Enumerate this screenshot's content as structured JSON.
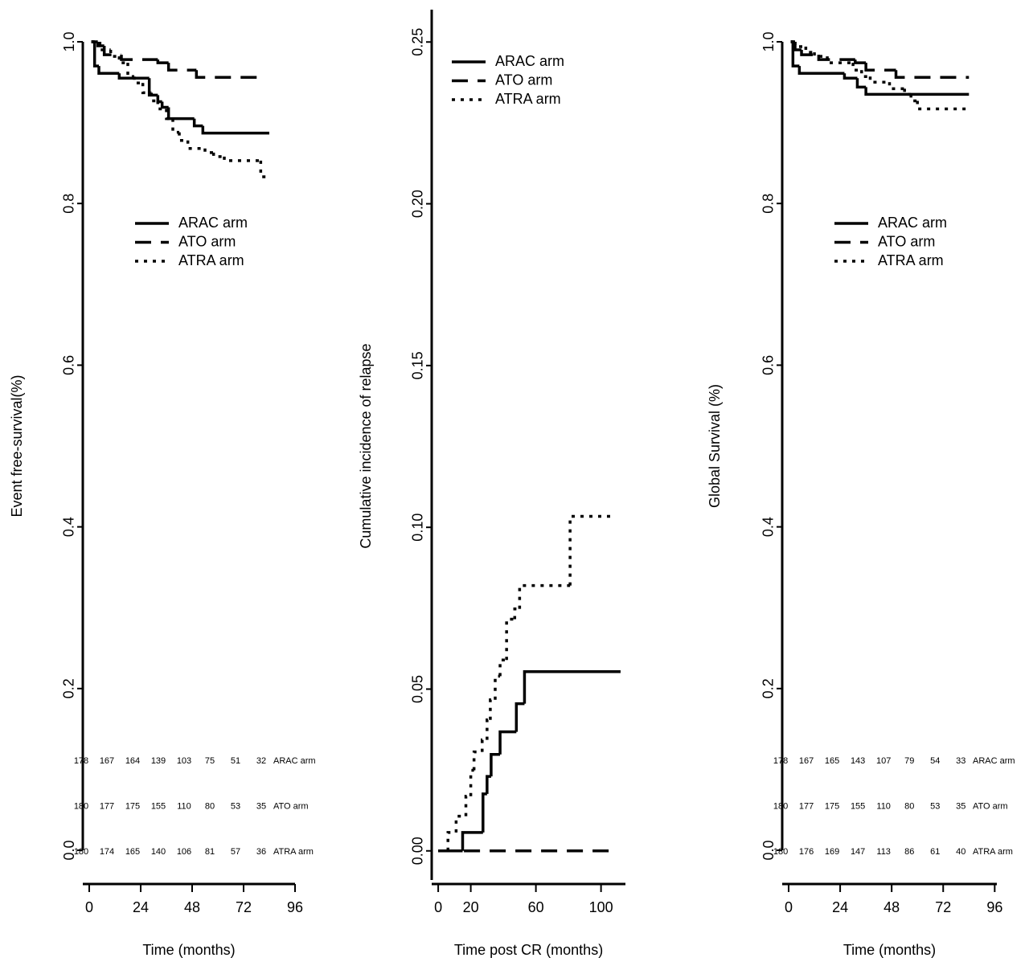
{
  "chart_data": [
    {
      "type": "line",
      "drawstyle": "steps-post",
      "ylabel": "Event free-survival(%)",
      "xlabel": "Time (months)",
      "xlim": [
        -3,
        96
      ],
      "ylim": [
        0,
        1
      ],
      "xticks": [
        0,
        24,
        48,
        72,
        96
      ],
      "yticks": [
        {
          "value": 0,
          "label": "0.0"
        },
        0.2,
        0.4,
        0.6,
        0.8,
        {
          "value": 1,
          "label": "1.0"
        }
      ],
      "legend": "upper center",
      "series": [
        {
          "name": "ARAC arm",
          "color": "#000000",
          "linestyle": "solid",
          "x": [
            1,
            2.5,
            4.5,
            14,
            28,
            32,
            34,
            37,
            49,
            53,
            84
          ],
          "values": [
            1.0,
            0.97,
            0.961,
            0.955,
            0.934,
            0.926,
            0.919,
            0.905,
            0.896,
            0.887,
            0.887
          ]
        },
        {
          "name": "ATO arm",
          "color": "#000000",
          "linestyle": "dashed",
          "x": [
            1,
            4,
            7,
            15,
            32,
            37,
            50,
            82
          ],
          "values": [
            1.0,
            0.995,
            0.984,
            0.978,
            0.974,
            0.965,
            0.956,
            0.956
          ]
        },
        {
          "name": "ATRA arm",
          "color": "#000000",
          "linestyle": "dotted",
          "x": [
            1,
            5,
            10,
            14,
            18,
            21,
            25,
            29,
            32,
            36,
            39,
            42,
            46,
            54,
            58,
            63,
            80,
            83
          ],
          "values": [
            1.0,
            0.99,
            0.982,
            0.974,
            0.957,
            0.949,
            0.937,
            0.927,
            0.917,
            0.905,
            0.888,
            0.878,
            0.868,
            0.863,
            0.858,
            0.853,
            0.833,
            0.833
          ]
        }
      ],
      "risk_table": {
        "rows": [
          {
            "name": "ARAC arm",
            "values": [
              178,
              167,
              164,
              139,
              103,
              75,
              51,
              32
            ]
          },
          {
            "name": "ATO arm",
            "values": [
              180,
              177,
              175,
              155,
              110,
              80,
              53,
              35
            ]
          },
          {
            "name": "ATRA arm",
            "values": [
              180,
              174,
              165,
              140,
              106,
              81,
              57,
              36
            ]
          }
        ]
      }
    },
    {
      "type": "line",
      "drawstyle": "steps-post",
      "ylabel": "Cumulative incidence of relapse",
      "xlabel": "Time post CR (months)",
      "xlim": [
        -4,
        115
      ],
      "ylim": [
        -0.009,
        0.26
      ],
      "xticks": [
        0,
        20,
        60,
        100
      ],
      "yticks": [
        {
          "value": 0,
          "label": "0.00"
        },
        0.05,
        {
          "value": 0.1,
          "label": "0.10"
        },
        0.15,
        {
          "value": 0.2,
          "label": "0.20"
        },
        0.25
      ],
      "legend": "upper left",
      "series": [
        {
          "name": "ARAC arm",
          "color": "#000000",
          "linestyle": "solid",
          "x": [
            0,
            15,
            27.5,
            30,
            32.5,
            38,
            48,
            53,
            112
          ],
          "values": [
            0,
            0.0057,
            0.0176,
            0.023,
            0.0298,
            0.0368,
            0.0455,
            0.0554,
            0.0554
          ]
        },
        {
          "name": "ATO arm",
          "color": "#000000",
          "linestyle": "dashed",
          "x": [
            0,
            110
          ],
          "values": [
            0,
            0
          ]
        },
        {
          "name": "ATRA arm",
          "color": "#000000",
          "linestyle": "dotted",
          "x": [
            0,
            6,
            11,
            17,
            20,
            22,
            27,
            30,
            32,
            35,
            38,
            42,
            47,
            50,
            81,
            106
          ],
          "values": [
            0,
            0.0057,
            0.0107,
            0.0169,
            0.0249,
            0.0306,
            0.0343,
            0.0405,
            0.0467,
            0.054,
            0.059,
            0.0716,
            0.0748,
            0.082,
            0.1034,
            0.1034
          ]
        }
      ]
    },
    {
      "type": "line",
      "drawstyle": "steps-post",
      "ylabel": "Global Survival (%)",
      "xlabel": "Time (months)",
      "xlim": [
        -3,
        97
      ],
      "ylim": [
        0,
        1
      ],
      "xticks": [
        0,
        24,
        48,
        72,
        96
      ],
      "yticks": [
        {
          "value": 0,
          "label": "0.0"
        },
        0.2,
        0.4,
        0.6,
        0.8,
        {
          "value": 1,
          "label": "1.0"
        }
      ],
      "legend": "upper center",
      "series": [
        {
          "name": "ARAC arm",
          "color": "#000000",
          "linestyle": "solid",
          "x": [
            1,
            2,
            5,
            26,
            32,
            36,
            84
          ],
          "values": [
            1.0,
            0.97,
            0.961,
            0.955,
            0.944,
            0.935,
            0.935
          ]
        },
        {
          "name": "ATO arm",
          "color": "#000000",
          "linestyle": "dashed",
          "x": [
            1,
            3,
            6,
            14,
            31,
            36,
            50,
            84
          ],
          "values": [
            1.0,
            0.99,
            0.984,
            0.978,
            0.974,
            0.965,
            0.956,
            0.956
          ]
        },
        {
          "name": "ATRA arm",
          "color": "#000000",
          "linestyle": "dotted",
          "x": [
            1,
            3,
            8,
            12,
            18,
            30,
            34,
            38,
            47,
            54,
            57,
            60,
            84
          ],
          "values": [
            1.0,
            0.994,
            0.987,
            0.982,
            0.974,
            0.965,
            0.957,
            0.95,
            0.942,
            0.935,
            0.927,
            0.917,
            0.917
          ]
        }
      ],
      "risk_table": {
        "rows": [
          {
            "name": "ARAC arm",
            "values": [
              178,
              167,
              165,
              143,
              107,
              79,
              54,
              33
            ]
          },
          {
            "name": "ATO arm",
            "values": [
              180,
              177,
              175,
              155,
              110,
              80,
              53,
              35
            ]
          },
          {
            "name": "ATRA arm",
            "values": [
              180,
              176,
              169,
              147,
              113,
              86,
              61,
              40
            ]
          }
        ]
      }
    }
  ]
}
